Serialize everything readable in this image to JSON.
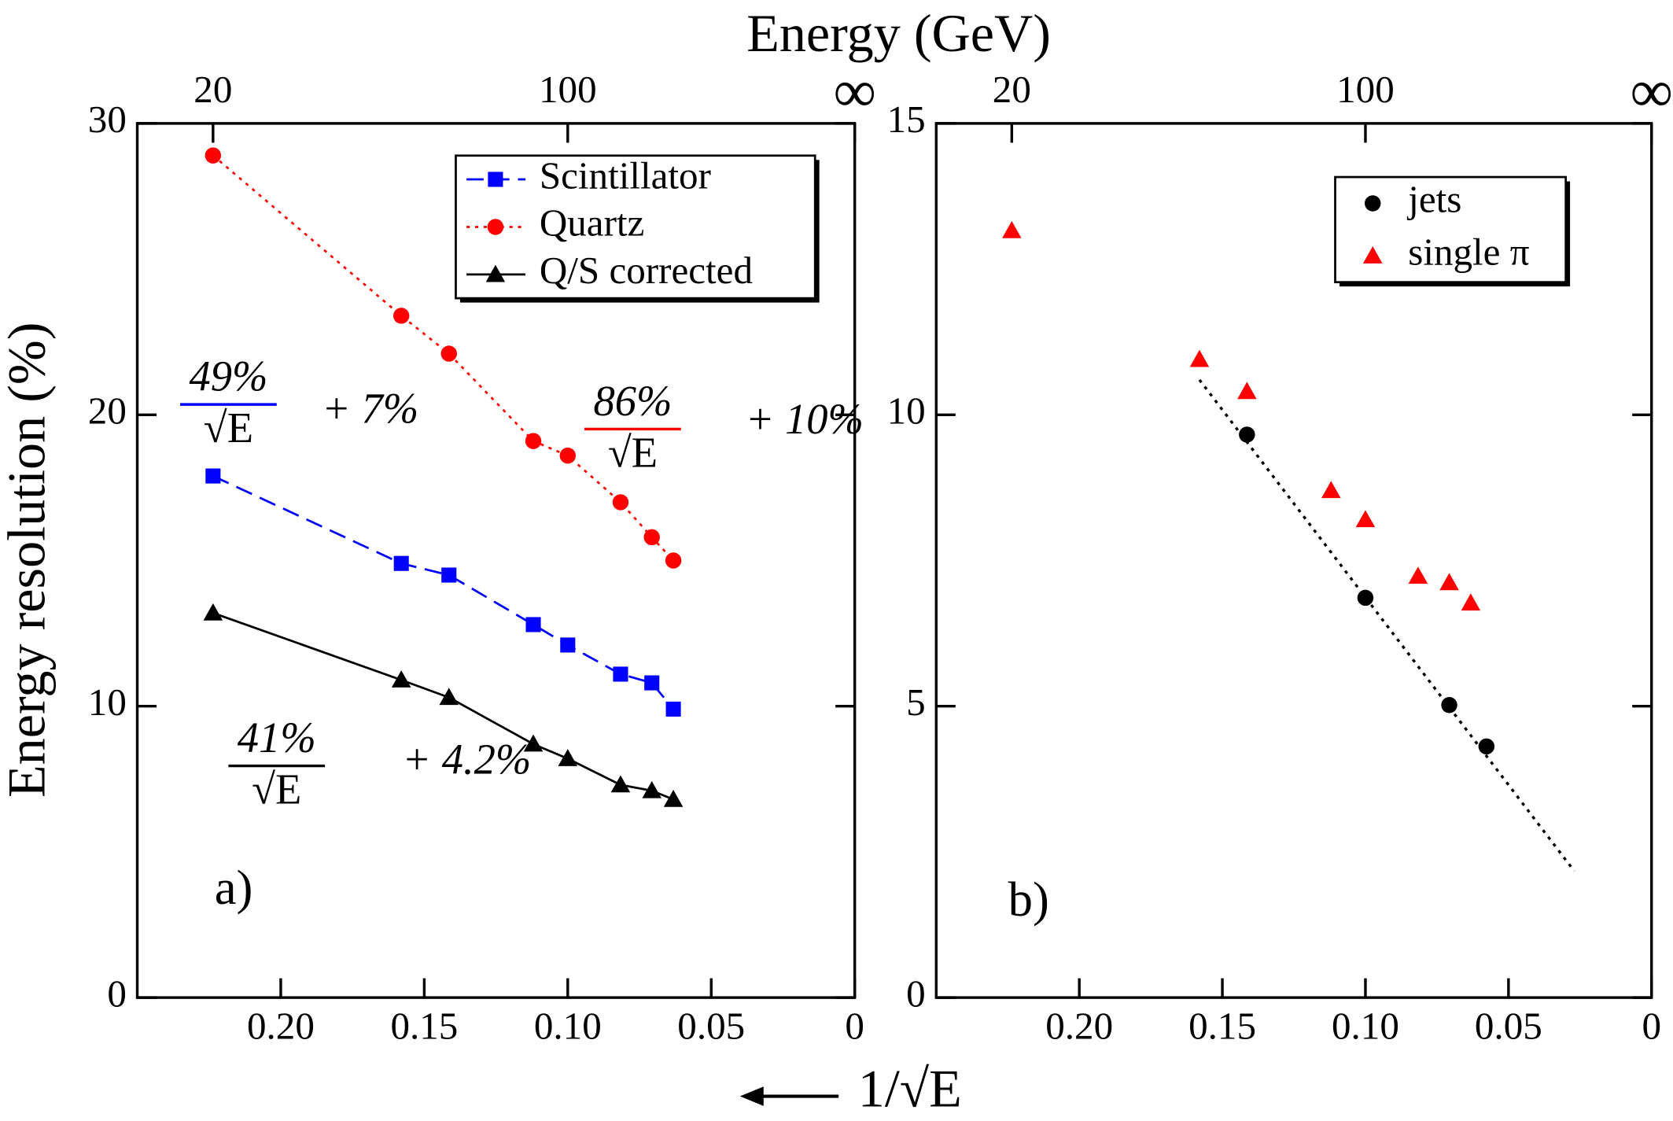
{
  "shared": {
    "title": "Energy (GeV)",
    "xlabel": "1/√E"
  },
  "chart_data": [
    {
      "type": "scatter",
      "ylabel": "Energy resolution (%)",
      "panel_label": "a)",
      "xlim": [
        0.25,
        0
      ],
      "ylim": [
        0,
        30
      ],
      "xticks": [
        {
          "value": 0.2,
          "label": "0.20"
        },
        {
          "value": 0.15,
          "label": "0.15"
        },
        {
          "value": 0.1,
          "label": "0.10"
        },
        {
          "value": 0.05,
          "label": "0.05"
        },
        0
      ],
      "x2ticks": [
        {
          "value": 0.2236,
          "label": "20"
        },
        {
          "value": 0.1,
          "label": "100"
        },
        {
          "value": 0,
          "label": "∞"
        }
      ],
      "yticks": [
        0,
        10,
        20,
        30
      ],
      "series": [
        {
          "name": "Scintillator",
          "color": "#0000ff",
          "marker": "square",
          "line": "dashed",
          "x": [
            0.2236,
            0.158,
            0.1414,
            0.112,
            0.1,
            0.0816,
            0.0707,
            0.0632
          ],
          "values": [
            17.9,
            14.9,
            14.5,
            12.8,
            12.1,
            11.1,
            10.8,
            9.9
          ]
        },
        {
          "name": "Quartz",
          "color": "#ff0000",
          "marker": "circle",
          "line": "dotted",
          "x": [
            0.2236,
            0.158,
            0.1414,
            0.112,
            0.1,
            0.0816,
            0.0707,
            0.0632
          ],
          "values": [
            28.9,
            23.4,
            22.1,
            19.1,
            18.6,
            17.0,
            15.8,
            15.0
          ]
        },
        {
          "name": "Q/S corrected",
          "color": "#000000",
          "marker": "triangle",
          "line": "solid",
          "x": [
            0.2236,
            0.158,
            0.1414,
            0.112,
            0.1,
            0.0816,
            0.0707,
            0.0632
          ],
          "values": [
            13.2,
            10.9,
            10.3,
            8.7,
            8.2,
            7.3,
            7.1,
            6.8
          ]
        }
      ],
      "annotations": [
        {
          "numerator": "49%",
          "denominator": "√E",
          "suffix": "+ 7%",
          "color": "#0000ff"
        },
        {
          "numerator": "86%",
          "denominator": "√E",
          "suffix": "+ 10%",
          "color": "#ff0000"
        },
        {
          "numerator": "41%",
          "denominator": "√E",
          "suffix": "+ 4.2%",
          "color": "#000000"
        }
      ]
    },
    {
      "type": "scatter",
      "panel_label": "b)",
      "xlim": [
        0.25,
        0
      ],
      "ylim": [
        0,
        15
      ],
      "xticks": [
        {
          "value": 0.2,
          "label": "0.20"
        },
        {
          "value": 0.15,
          "label": "0.15"
        },
        {
          "value": 0.1,
          "label": "0.10"
        },
        {
          "value": 0.05,
          "label": "0.05"
        },
        0
      ],
      "x2ticks": [
        {
          "value": 0.2236,
          "label": "20"
        },
        {
          "value": 0.1,
          "label": "100"
        },
        {
          "value": 0,
          "label": "∞"
        }
      ],
      "yticks": [
        0,
        5,
        10,
        15
      ],
      "series": [
        {
          "name": "jets",
          "color": "#000000",
          "marker": "circle",
          "x": [
            0.1414,
            0.1,
            0.0707,
            0.0577
          ],
          "values": [
            9.66,
            6.86,
            5.02,
            4.31
          ]
        },
        {
          "name": "single π",
          "color": "#ff0000",
          "marker": "triangle",
          "x": [
            0.2236,
            0.158,
            0.1414,
            0.112,
            0.1,
            0.0816,
            0.0707,
            0.0632
          ],
          "values": [
            13.16,
            10.95,
            10.4,
            8.7,
            8.2,
            7.23,
            7.12,
            6.77
          ]
        }
      ],
      "fit_line": {
        "x": [
          0.158,
          0.027
        ],
        "values": [
          10.6,
          2.17
        ],
        "color": "#000000"
      }
    }
  ]
}
